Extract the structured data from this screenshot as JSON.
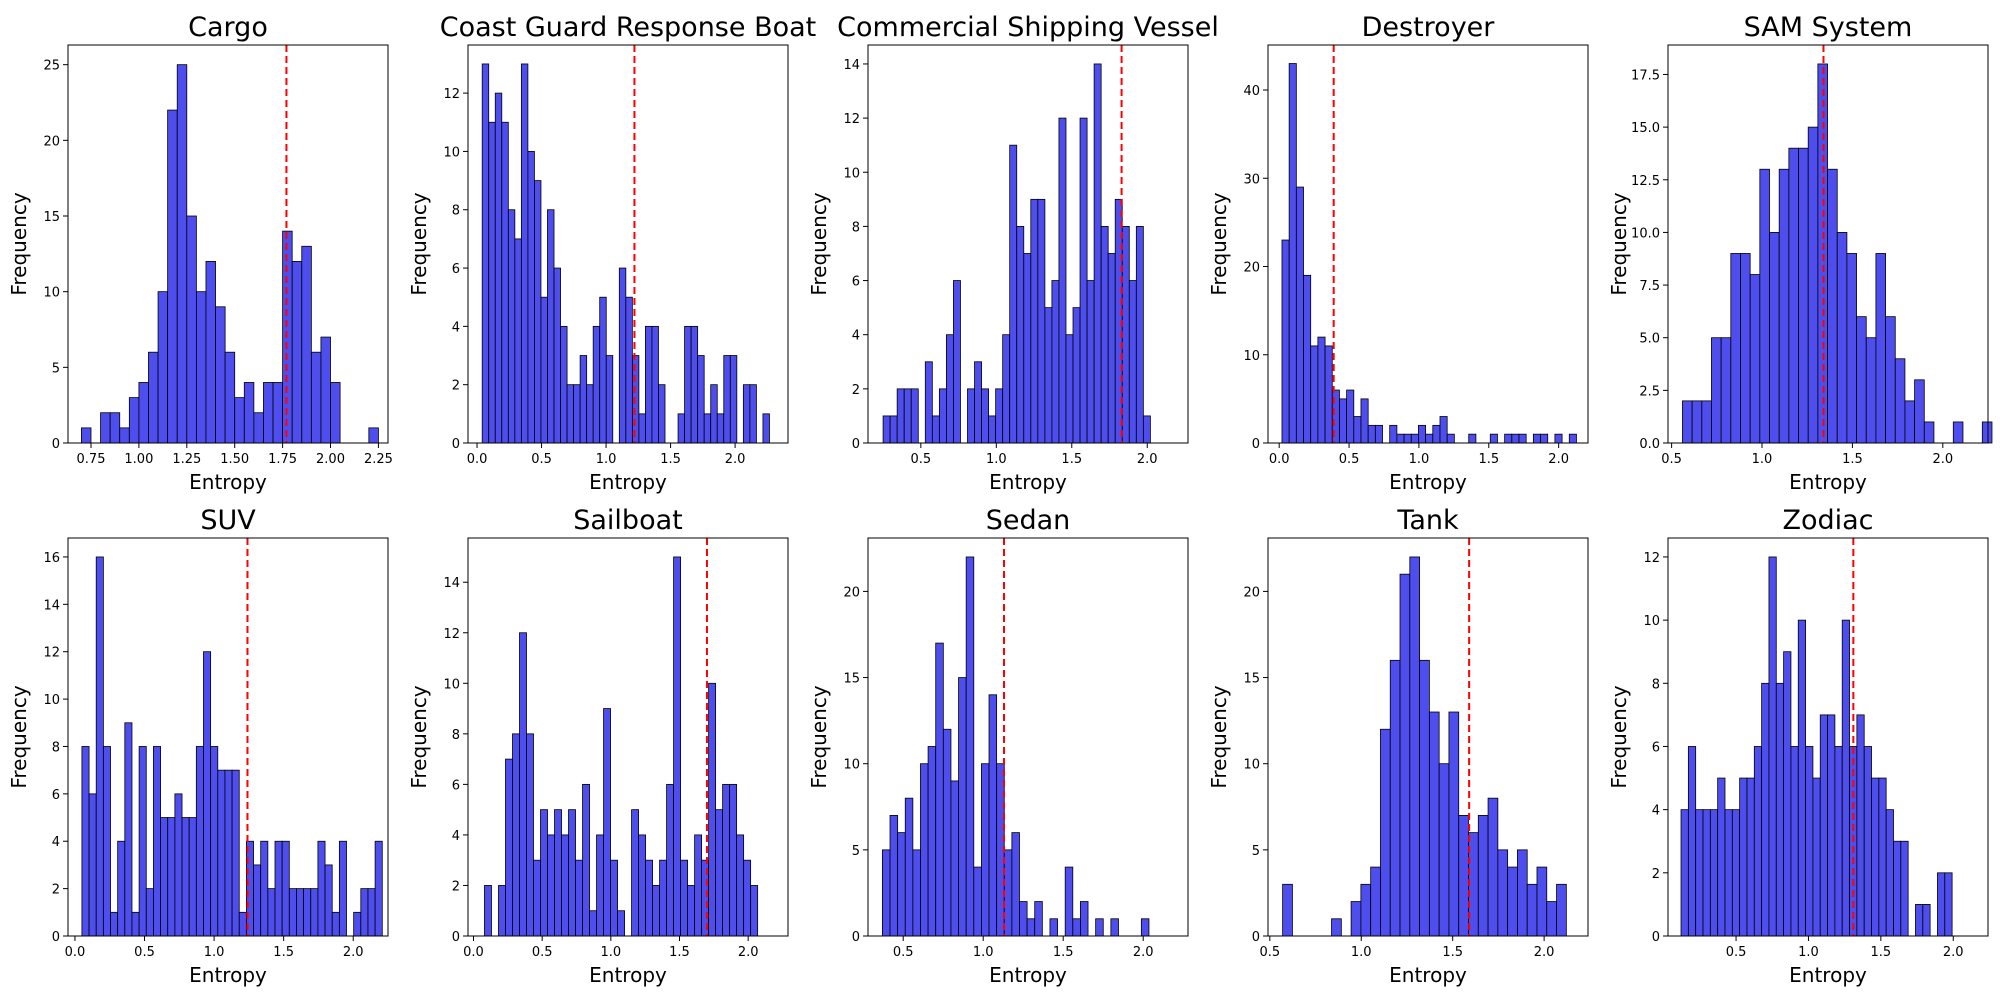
{
  "chart_data": [
    {
      "type": "histogram",
      "title": "Cargo",
      "xlabel": "Entropy",
      "ylabel": "Frequency",
      "xlim": [
        0.63,
        2.3
      ],
      "ylim": [
        0,
        26.3
      ],
      "xticks": [
        "0.75",
        "1.00",
        "1.25",
        "1.50",
        "1.75",
        "2.00",
        "2.25"
      ],
      "yticks": [
        "0",
        "5",
        "10",
        "15",
        "20",
        "25"
      ],
      "bin_start": 0.7,
      "bin_width": 0.05,
      "counts": [
        1,
        0,
        2,
        2,
        1,
        3,
        4,
        6,
        10,
        22,
        25,
        15,
        10,
        12,
        9,
        6,
        3,
        4,
        2,
        4,
        4,
        14,
        12,
        13,
        6,
        7,
        4,
        0,
        0,
        0,
        1
      ],
      "threshold": 1.77,
      "color": "#4444ee",
      "threshold_color": "#ff0000"
    },
    {
      "type": "histogram",
      "title": "Coast Guard Response Boat",
      "xlabel": "Entropy",
      "ylabel": "Frequency",
      "xlim": [
        -0.07,
        2.41
      ],
      "ylim": [
        0,
        13.65
      ],
      "xticks": [
        "0.0",
        "0.5",
        "1.0",
        "1.5",
        "2.0"
      ],
      "yticks": [
        "0",
        "2",
        "4",
        "6",
        "8",
        "10",
        "12"
      ],
      "bin_start": 0.04,
      "bin_width": 0.0506,
      "counts": [
        13,
        11,
        12,
        11,
        8,
        7,
        13,
        10,
        9,
        5,
        8,
        6,
        4,
        2,
        2,
        3,
        2,
        4,
        5,
        3,
        0,
        6,
        5,
        3,
        1,
        4,
        4,
        2,
        0,
        0,
        1,
        4,
        4,
        3,
        1,
        2,
        1,
        3,
        3,
        0,
        2,
        2,
        0,
        1
      ],
      "threshold": 1.22,
      "color": "#4444ee",
      "threshold_color": "#ff0000"
    },
    {
      "type": "histogram",
      "title": "Commercial Shipping Vessel",
      "xlabel": "Entropy",
      "ylabel": "Frequency",
      "xlim": [
        0.15,
        2.27
      ],
      "ylim": [
        0,
        14.7
      ],
      "xticks": [
        "0.5",
        "1.0",
        "1.5",
        "2.0"
      ],
      "yticks": [
        "0",
        "2",
        "4",
        "6",
        "8",
        "10",
        "12",
        "14"
      ],
      "bin_start": 0.25,
      "bin_width": 0.0466,
      "counts": [
        1,
        1,
        2,
        2,
        2,
        0,
        3,
        1,
        2,
        4,
        6,
        0,
        2,
        3,
        2,
        1,
        2,
        4,
        11,
        8,
        7,
        9,
        9,
        5,
        6,
        12,
        4,
        5,
        12,
        6,
        14,
        8,
        7,
        9,
        8,
        6,
        8,
        1
      ],
      "threshold": 1.83,
      "color": "#4444ee",
      "threshold_color": "#ff0000"
    },
    {
      "type": "histogram",
      "title": "Destroyer",
      "xlabel": "Entropy",
      "ylabel": "Frequency",
      "xlim": [
        -0.08,
        2.21
      ],
      "ylim": [
        0,
        45.1
      ],
      "xticks": [
        "0.0",
        "0.5",
        "1.0",
        "1.5",
        "2.0"
      ],
      "yticks": [
        "0",
        "10",
        "20",
        "30",
        "40"
      ],
      "bin_start": 0.02,
      "bin_width": 0.0514,
      "counts": [
        23,
        43,
        29,
        19,
        11,
        12,
        11,
        6,
        5,
        6,
        3,
        5,
        2,
        2,
        0,
        2,
        1,
        1,
        1,
        2,
        1,
        2,
        3,
        1,
        0,
        0,
        1,
        0,
        0,
        1,
        0,
        1,
        1,
        1,
        0,
        1,
        1,
        0,
        1,
        0,
        1
      ],
      "threshold": 0.39,
      "color": "#4444ee",
      "threshold_color": "#ff0000"
    },
    {
      "type": "histogram",
      "title": "SAM System",
      "xlabel": "Entropy",
      "ylabel": "Frequency",
      "xlim": [
        0.48,
        2.25
      ],
      "ylim": [
        0,
        18.9
      ],
      "xticks": [
        "0.5",
        "1.0",
        "1.5",
        "2.0"
      ],
      "yticks": [
        "0.0",
        "2.5",
        "5.0",
        "7.5",
        "10.0",
        "12.5",
        "15.0",
        "17.5"
      ],
      "bin_start": 0.56,
      "bin_width": 0.0535,
      "counts": [
        2,
        2,
        2,
        5,
        5,
        9,
        9,
        8,
        13,
        10,
        13,
        14,
        14,
        15,
        18,
        13,
        10,
        9,
        6,
        5,
        9,
        6,
        4,
        2,
        3,
        1,
        0,
        0,
        1,
        0,
        0,
        1
      ],
      "threshold": 1.34,
      "color": "#4444ee",
      "threshold_color": "#ff0000"
    },
    {
      "type": "histogram",
      "title": "SUV",
      "xlabel": "Entropy",
      "ylabel": "Frequency",
      "xlim": [
        -0.05,
        2.25
      ],
      "ylim": [
        0,
        16.8
      ],
      "xticks": [
        "0.0",
        "0.5",
        "1.0",
        "1.5",
        "2.0"
      ],
      "yticks": [
        "0",
        "2",
        "4",
        "6",
        "8",
        "10",
        "12",
        "14",
        "16"
      ],
      "bin_start": 0.05,
      "bin_width": 0.0514,
      "counts": [
        8,
        6,
        16,
        8,
        1,
        4,
        9,
        1,
        8,
        2,
        8,
        5,
        5,
        6,
        5,
        5,
        8,
        12,
        8,
        7,
        7,
        7,
        1,
        4,
        3,
        4,
        2,
        4,
        4,
        2,
        2,
        2,
        2,
        4,
        3,
        1,
        4,
        0,
        1,
        2,
        2,
        4
      ],
      "threshold": 1.24,
      "color": "#4444ee",
      "threshold_color": "#ff0000"
    },
    {
      "type": "histogram",
      "title": "Sailboat",
      "xlabel": "Entropy",
      "ylabel": "Frequency",
      "xlim": [
        -0.04,
        2.29
      ],
      "ylim": [
        0,
        15.75
      ],
      "xticks": [
        "0.0",
        "0.5",
        "1.0",
        "1.5",
        "2.0"
      ],
      "yticks": [
        "0",
        "2",
        "4",
        "6",
        "8",
        "10",
        "12",
        "14"
      ],
      "bin_start": 0.08,
      "bin_width": 0.051,
      "counts": [
        2,
        0,
        2,
        7,
        8,
        12,
        8,
        3,
        5,
        4,
        5,
        4,
        5,
        3,
        6,
        1,
        4,
        9,
        3,
        1,
        0,
        5,
        4,
        3,
        2,
        3,
        6,
        15,
        3,
        2,
        4,
        3,
        10,
        5,
        6,
        6,
        4,
        3,
        2
      ],
      "threshold": 1.7,
      "color": "#4444ee",
      "threshold_color": "#ff0000"
    },
    {
      "type": "histogram",
      "title": "Sedan",
      "xlabel": "Entropy",
      "ylabel": "Frequency",
      "xlim": [
        0.28,
        2.28
      ],
      "ylim": [
        0,
        23.1
      ],
      "xticks": [
        "0.5",
        "1.0",
        "1.5",
        "2.0"
      ],
      "yticks": [
        "0",
        "5",
        "10",
        "15",
        "20"
      ],
      "bin_start": 0.37,
      "bin_width": 0.0476,
      "counts": [
        5,
        7,
        6,
        8,
        5,
        10,
        11,
        17,
        12,
        9,
        15,
        22,
        4,
        10,
        14,
        10,
        5,
        6,
        2,
        1,
        2,
        0,
        1,
        0,
        4,
        1,
        2,
        0,
        1,
        0,
        1,
        0,
        0,
        0,
        1
      ],
      "threshold": 1.13,
      "color": "#4444ee",
      "threshold_color": "#ff0000"
    },
    {
      "type": "histogram",
      "title": "Tank",
      "xlabel": "Entropy",
      "ylabel": "Frequency",
      "xlim": [
        0.49,
        2.24
      ],
      "ylim": [
        0,
        23.1
      ],
      "xticks": [
        "0.5",
        "1.0",
        "1.5",
        "2.0"
      ],
      "yticks": [
        "0",
        "5",
        "10",
        "15",
        "20"
      ],
      "bin_start": 0.57,
      "bin_width": 0.0535,
      "counts": [
        3,
        0,
        0,
        0,
        0,
        1,
        0,
        2,
        3,
        4,
        12,
        16,
        21,
        22,
        16,
        13,
        10,
        13,
        7,
        6,
        7,
        8,
        5,
        4,
        5,
        3,
        4,
        2,
        3
      ],
      "threshold": 1.59,
      "color": "#4444ee",
      "threshold_color": "#ff0000"
    },
    {
      "type": "histogram",
      "title": "Zodiac",
      "xlabel": "Entropy",
      "ylabel": "Frequency",
      "xlim": [
        0.03,
        2.24
      ],
      "ylim": [
        0,
        12.6
      ],
      "xticks": [
        "0.5",
        "1.0",
        "1.5",
        "2.0"
      ],
      "yticks": [
        "0",
        "2",
        "4",
        "6",
        "8",
        "10",
        "12"
      ],
      "bin_start": 0.12,
      "bin_width": 0.0506,
      "counts": [
        4,
        6,
        4,
        4,
        4,
        5,
        4,
        4,
        5,
        5,
        6,
        8,
        12,
        8,
        9,
        6,
        10,
        6,
        5,
        7,
        7,
        6,
        10,
        6,
        7,
        6,
        5,
        5,
        4,
        3,
        3,
        0,
        1,
        1,
        0,
        2,
        2
      ],
      "threshold": 1.31,
      "color": "#4444ee",
      "threshold_color": "#ff0000"
    }
  ]
}
